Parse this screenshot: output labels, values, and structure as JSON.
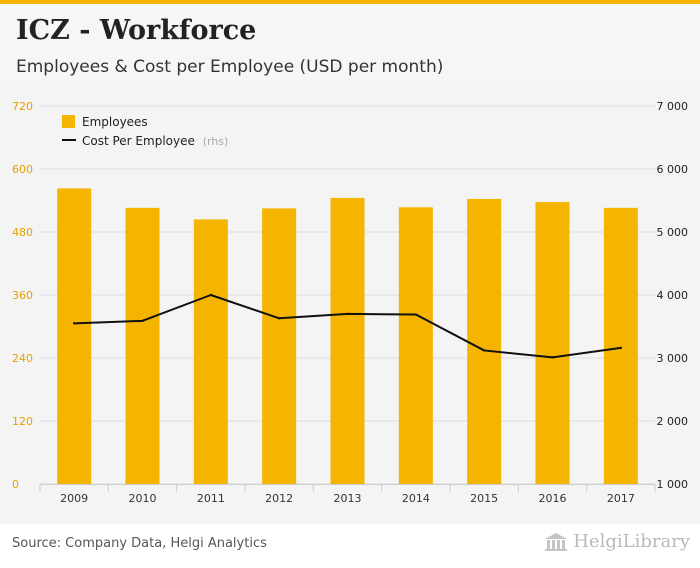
{
  "header": {
    "title": "ICZ - Workforce",
    "subtitle": "Employees & Cost per Employee (USD per month)"
  },
  "footer": {
    "source": "Source: Company Data, Helgi Analytics",
    "logo_text": "HelgiLibrary"
  },
  "colors": {
    "bar": "#f5b400",
    "line": "#111111",
    "axis_left": "#e5a000",
    "axis_right": "#222222",
    "grid": "#dcdcdc"
  },
  "chart_data": {
    "type": "bar+line",
    "categories": [
      "2009",
      "2010",
      "2011",
      "2012",
      "2013",
      "2014",
      "2015",
      "2016",
      "2017"
    ],
    "series": [
      {
        "name": "Employees",
        "axis": "left",
        "type": "bar",
        "values": [
          563,
          526,
          504,
          525,
          545,
          527,
          543,
          537,
          526
        ]
      },
      {
        "name": "Cost Per Employee",
        "legend_suffix": "(rhs)",
        "axis": "right",
        "type": "line",
        "values": [
          3550,
          3590,
          4000,
          3630,
          3700,
          3690,
          3120,
          3010,
          3160
        ]
      }
    ],
    "y_left": {
      "min": 0,
      "max": 720,
      "ticks": [
        "0",
        "120",
        "240",
        "360",
        "480",
        "600",
        "720"
      ]
    },
    "y_right": {
      "min": 1000,
      "max": 7000,
      "ticks": [
        "1 000",
        "2 000",
        "3 000",
        "4 000",
        "5 000",
        "6 000",
        "7 000"
      ]
    },
    "legend": {
      "position": "top-left",
      "items": [
        "Employees",
        "Cost Per Employee"
      ],
      "suffix": "(rhs)"
    },
    "grid": true
  }
}
